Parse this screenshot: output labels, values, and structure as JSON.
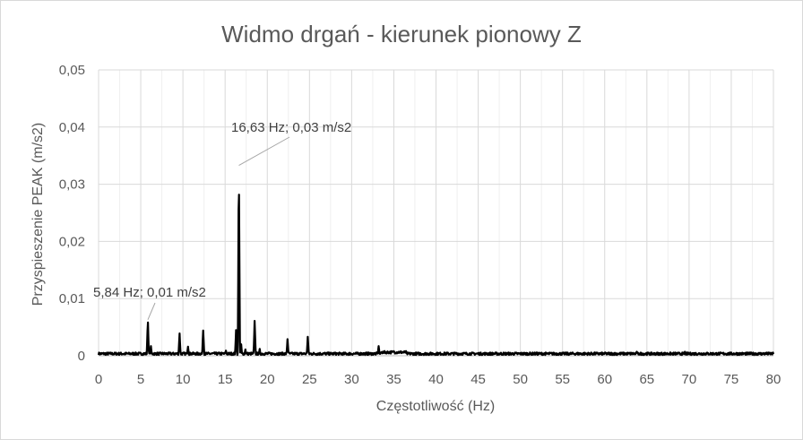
{
  "chart_data": {
    "type": "line",
    "title": "Widmo drgań - kierunek pionowy Z",
    "xlabel": "Częstotliwość (Hz)",
    "ylabel": "Przyspieszenie PEAK (m/s2)",
    "xlim": [
      0,
      80
    ],
    "ylim": [
      0,
      0.05
    ],
    "x_ticks": [
      0,
      5,
      10,
      15,
      20,
      25,
      30,
      35,
      40,
      45,
      50,
      55,
      60,
      65,
      70,
      75,
      80
    ],
    "x_tick_labels": [
      "0",
      "5",
      "10",
      "15",
      "20",
      "25",
      "30",
      "35",
      "40",
      "45",
      "50",
      "55",
      "60",
      "65",
      "70",
      "75",
      "80"
    ],
    "y_ticks": [
      0,
      0.01,
      0.02,
      0.03,
      0.04,
      0.05
    ],
    "y_tick_labels": [
      "0",
      "0,01",
      "0,02",
      "0,03",
      "0,04",
      "0,05"
    ],
    "grid": true,
    "legend": "none",
    "line_color": "#000000",
    "baseline": 0.0004,
    "peaks": [
      {
        "x": 5.84,
        "y": 0.0063
      },
      {
        "x": 6.2,
        "y": 0.0017
      },
      {
        "x": 9.6,
        "y": 0.0039
      },
      {
        "x": 10.6,
        "y": 0.0016
      },
      {
        "x": 12.4,
        "y": 0.0044
      },
      {
        "x": 15.1,
        "y": 0.0009
      },
      {
        "x": 16.3,
        "y": 0.0045
      },
      {
        "x": 16.63,
        "y": 0.0333
      },
      {
        "x": 16.9,
        "y": 0.002
      },
      {
        "x": 17.4,
        "y": 0.0011
      },
      {
        "x": 18.5,
        "y": 0.0061
      },
      {
        "x": 19.1,
        "y": 0.0012
      },
      {
        "x": 22.4,
        "y": 0.0029
      },
      {
        "x": 24.8,
        "y": 0.0033
      },
      {
        "x": 33.2,
        "y": 0.0017
      },
      {
        "x": 35.0,
        "y": 0.0008
      },
      {
        "x": 63.8,
        "y": 0.0007
      },
      {
        "x": 69.5,
        "y": 0.0007
      }
    ],
    "annotations": [
      {
        "text": "16,63 Hz; 0,03 m/s2",
        "x": 16.63,
        "y": 0.0333
      },
      {
        "text": "5,84 Hz; 0,01 m/s2",
        "x": 5.84,
        "y": 0.0063
      }
    ]
  }
}
